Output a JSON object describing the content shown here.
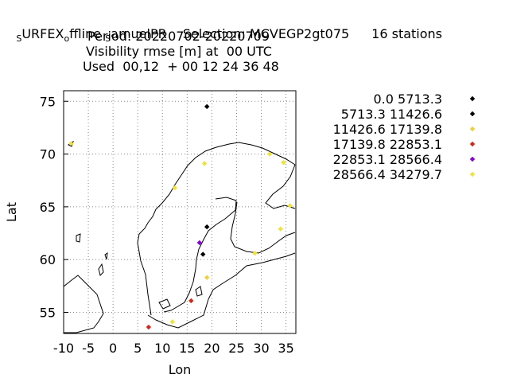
{
  "title": {
    "line1": {
      "parts": [
        {
          "text": "S",
          "sub": true
        },
        {
          "text": "URFEX",
          "sub": false
        },
        {
          "text": "o",
          "sub": true
        },
        {
          "text": "ffline ",
          "sub": false
        },
        {
          "text": "S",
          "sub": true
        },
        {
          "text": "amuelPR",
          "sub": false
        }
      ],
      "selection": "Selection: MCVEGP2gt075",
      "stations": "16 stations"
    },
    "line2": "Period: 20220702-20220709",
    "line3": "Visibility rmse [m] at  00 UTC",
    "line4": "Used  00,12  + 00 12 24 36 48"
  },
  "chart_data": {
    "type": "scatter",
    "xlabel": "Lon",
    "ylabel": "Lat",
    "xlim": [
      -10,
      37
    ],
    "ylim": [
      53,
      76
    ],
    "xticks": [
      -10,
      -5,
      0,
      5,
      10,
      15,
      20,
      25,
      30,
      35
    ],
    "yticks": [
      55,
      60,
      65,
      70,
      75
    ],
    "grid": true,
    "background_map": "coastlines",
    "legend_position": "right",
    "legend": [
      {
        "label": "0.0 5713.3",
        "color": "#000000"
      },
      {
        "label": "5713.3 11426.6",
        "color": "#000000"
      },
      {
        "label": "11426.6 17139.8",
        "color": "#f0d040"
      },
      {
        "label": "17139.8 22853.1",
        "color": "#cc2a1a"
      },
      {
        "label": "22853.1 28566.4",
        "color": "#8a00d4"
      },
      {
        "label": "28566.4 34279.7",
        "color": "#f0e040"
      }
    ],
    "points": [
      {
        "lon": 19.0,
        "lat": 74.5,
        "class": 0
      },
      {
        "lon": 19.0,
        "lat": 63.1,
        "class": 1
      },
      {
        "lon": 18.2,
        "lat": 60.5,
        "class": 1
      },
      {
        "lon": -8.5,
        "lat": 71.0,
        "class": 5
      },
      {
        "lon": 12.5,
        "lat": 66.8,
        "class": 5
      },
      {
        "lon": 18.5,
        "lat": 69.1,
        "class": 5
      },
      {
        "lon": 31.7,
        "lat": 70.0,
        "class": 5
      },
      {
        "lon": 34.5,
        "lat": 69.2,
        "class": 5
      },
      {
        "lon": 35.8,
        "lat": 65.1,
        "class": 5
      },
      {
        "lon": 33.9,
        "lat": 62.9,
        "class": 5
      },
      {
        "lon": 28.7,
        "lat": 60.6,
        "class": 5
      },
      {
        "lon": 19.0,
        "lat": 58.3,
        "class": 2
      },
      {
        "lon": 12.0,
        "lat": 54.1,
        "class": 5
      },
      {
        "lon": 15.8,
        "lat": 56.1,
        "class": 3
      },
      {
        "lon": 7.2,
        "lat": 53.6,
        "class": 3
      },
      {
        "lon": 17.5,
        "lat": 61.6,
        "class": 4
      }
    ]
  }
}
